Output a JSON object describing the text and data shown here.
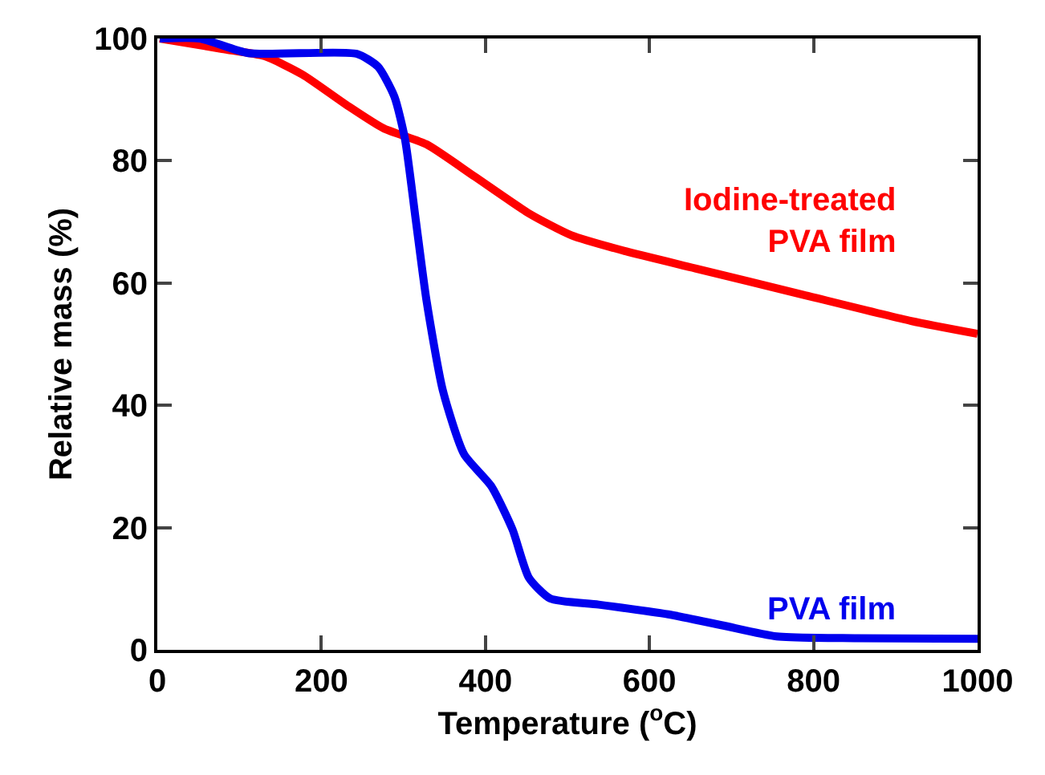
{
  "chart_data": {
    "type": "line",
    "xlabel": "Temperature ($^{o}$C)",
    "ylabel": "Relative mass (%)",
    "xlim": [
      0,
      1000
    ],
    "ylim": [
      0,
      100
    ],
    "xticks": [
      0,
      200,
      400,
      600,
      800,
      1000
    ],
    "yticks": [
      0,
      20,
      40,
      60,
      80,
      100
    ],
    "grid": false,
    "legend": false,
    "marker": "none",
    "line_style": "solid",
    "series": [
      {
        "name": "Iodine-treated\nPVA film",
        "color": "#ff0000",
        "x": [
          3,
          79,
          131,
          177,
          230,
          276,
          328,
          387,
          453,
          505,
          571,
          656,
          787,
          919,
          1000
        ],
        "values": [
          100,
          98.3,
          97.1,
          94.1,
          89.2,
          85.3,
          82.7,
          77.4,
          71.4,
          67.8,
          65.2,
          62.4,
          58.1,
          53.8,
          51.7
        ]
      },
      {
        "name": "PVA film",
        "color": "#0000ee",
        "x": [
          3,
          52,
          111,
          243,
          269,
          289,
          302,
          315,
          328,
          348,
          374,
          407,
          433,
          453,
          479,
          538,
          623,
          689,
          755,
          853,
          1000
        ],
        "values": [
          100,
          100,
          97.6,
          97.5,
          95.4,
          90.5,
          83.5,
          70.4,
          57.3,
          42.5,
          32,
          26.8,
          19.7,
          11.8,
          8.4,
          7.4,
          5.8,
          4,
          2.2,
          1.9,
          1.8
        ]
      }
    ]
  }
}
